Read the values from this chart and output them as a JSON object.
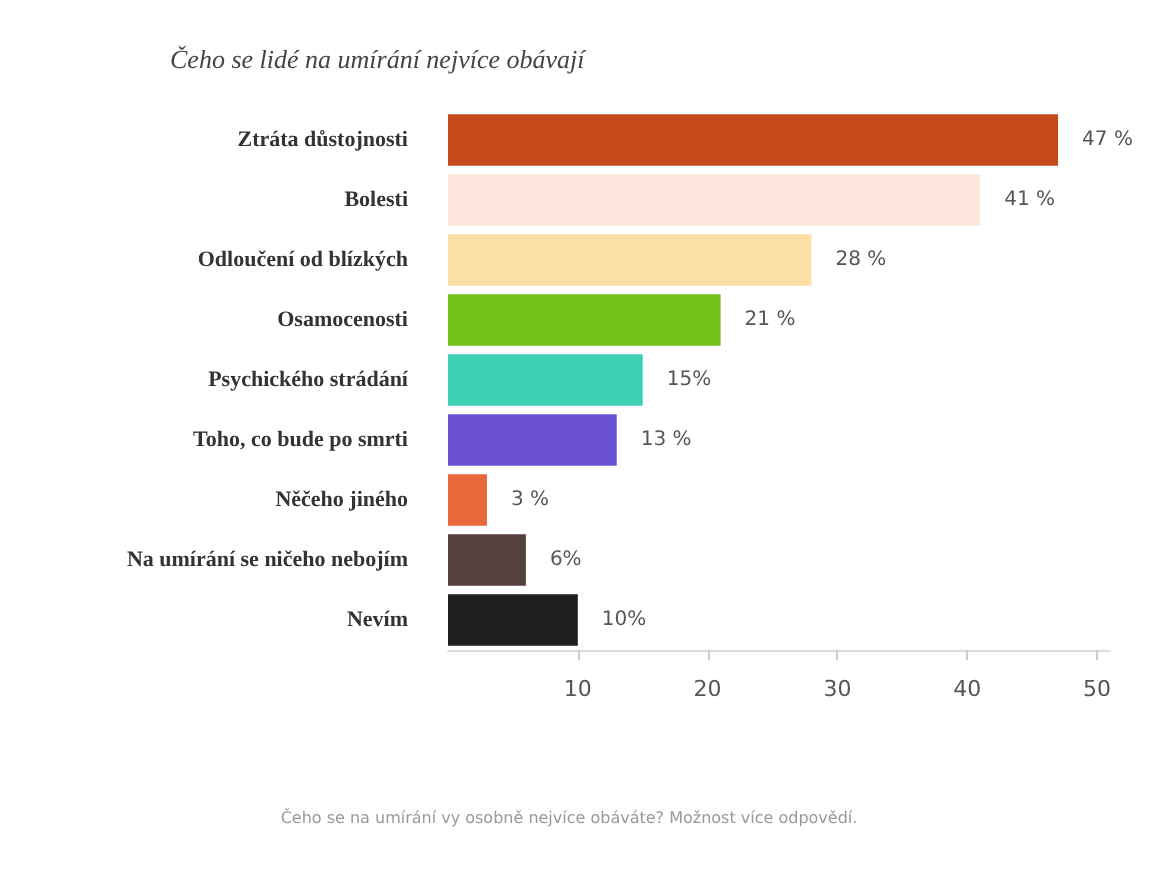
{
  "chart_data": {
    "type": "bar",
    "orientation": "horizontal",
    "title": "Čeho se lidé na umírání nejvíce obávají",
    "categories": [
      "Ztráta důstojnosti",
      "Bolesti",
      "Odloučení od blízkých",
      "Osamocenosti",
      "Psychického strádání",
      "Toho, co bude po smrti",
      "Něčeho jiného",
      "Na umírání se ničeho nebojím",
      "Nevím"
    ],
    "values": [
      47,
      41,
      28,
      21,
      15,
      13,
      3,
      6,
      10
    ],
    "value_labels": [
      "47 %",
      "41 %",
      "28 %",
      "21 %",
      "15%",
      "13 %",
      "3 %",
      "6%",
      "10%"
    ],
    "colors": [
      "#c44a1c",
      "#fde6db",
      "#fbe0a6",
      "#72c01a",
      "#3ccfb4",
      "#6b52d4",
      "#e8683a",
      "#54413c",
      "#1e1e1e"
    ],
    "xlim": [
      0,
      51
    ],
    "xticks": [
      10,
      20,
      30,
      40,
      50
    ],
    "grid": false,
    "annotations": [
      "Čeho se na umírání vy osobně nejvíce obáváte? Možnost více odpovědí."
    ]
  }
}
